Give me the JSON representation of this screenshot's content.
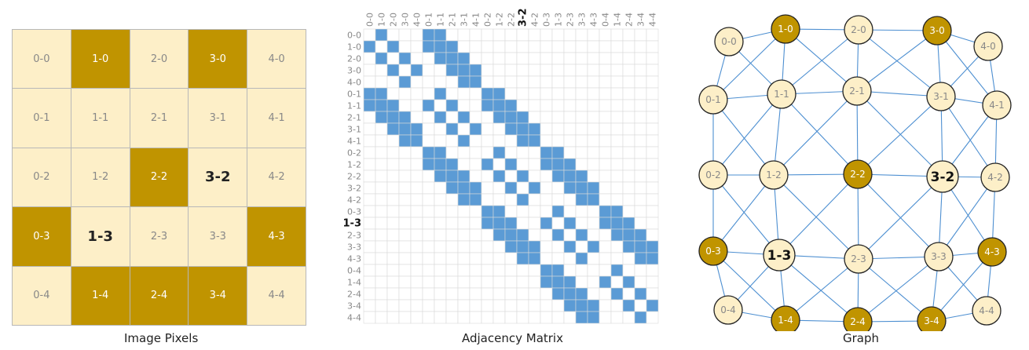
{
  "colors": {
    "light": "#fdefc8",
    "dark": "#c09400",
    "edge": "#4d8fd1",
    "matrix_fill": "#5b9bd5",
    "grid_line": "#d9d9d9",
    "border": "#b8b8b8"
  },
  "pixels": {
    "caption": "Image Pixels",
    "cols": 5,
    "rows": 5,
    "cells": [
      {
        "label": "0-0",
        "dark": false
      },
      {
        "label": "1-0",
        "dark": true
      },
      {
        "label": "2-0",
        "dark": false
      },
      {
        "label": "3-0",
        "dark": true
      },
      {
        "label": "4-0",
        "dark": false
      },
      {
        "label": "0-1",
        "dark": false
      },
      {
        "label": "1-1",
        "dark": false
      },
      {
        "label": "2-1",
        "dark": false
      },
      {
        "label": "3-1",
        "dark": false
      },
      {
        "label": "4-1",
        "dark": false
      },
      {
        "label": "0-2",
        "dark": false
      },
      {
        "label": "1-2",
        "dark": false
      },
      {
        "label": "2-2",
        "dark": true
      },
      {
        "label": "3-2",
        "dark": false
      },
      {
        "label": "4-2",
        "dark": false
      },
      {
        "label": "0-3",
        "dark": true
      },
      {
        "label": "1-3",
        "dark": false
      },
      {
        "label": "2-3",
        "dark": false
      },
      {
        "label": "3-3",
        "dark": false
      },
      {
        "label": "4-3",
        "dark": true
      },
      {
        "label": "0-4",
        "dark": false
      },
      {
        "label": "1-4",
        "dark": true
      },
      {
        "label": "2-4",
        "dark": true
      },
      {
        "label": "3-4",
        "dark": true
      },
      {
        "label": "4-4",
        "dark": false
      }
    ],
    "highlighted": [
      "3-2",
      "1-3"
    ]
  },
  "matrix": {
    "caption": "Adjacency Matrix",
    "labels": [
      "0-0",
      "1-0",
      "2-0",
      "3-0",
      "4-0",
      "0-1",
      "1-1",
      "2-1",
      "3-1",
      "4-1",
      "0-2",
      "1-2",
      "2-2",
      "3-2",
      "4-2",
      "0-3",
      "1-3",
      "2-3",
      "3-3",
      "4-3",
      "0-4",
      "1-4",
      "2-4",
      "3-4",
      "4-4"
    ],
    "row_highlight": "1-3",
    "col_highlight": "3-2",
    "adjacency": "8-neighborhood"
  },
  "graph": {
    "caption": "Graph",
    "nodes": [
      {
        "label": "0-0",
        "dark": false
      },
      {
        "label": "1-0",
        "dark": true
      },
      {
        "label": "2-0",
        "dark": false
      },
      {
        "label": "3-0",
        "dark": true
      },
      {
        "label": "4-0",
        "dark": false
      },
      {
        "label": "0-1",
        "dark": false
      },
      {
        "label": "1-1",
        "dark": false
      },
      {
        "label": "2-1",
        "dark": false
      },
      {
        "label": "3-1",
        "dark": false
      },
      {
        "label": "4-1",
        "dark": false
      },
      {
        "label": "0-2",
        "dark": false
      },
      {
        "label": "1-2",
        "dark": false
      },
      {
        "label": "2-2",
        "dark": true
      },
      {
        "label": "3-2",
        "dark": false
      },
      {
        "label": "4-2",
        "dark": false
      },
      {
        "label": "0-3",
        "dark": true
      },
      {
        "label": "1-3",
        "dark": false
      },
      {
        "label": "2-3",
        "dark": false
      },
      {
        "label": "3-3",
        "dark": false
      },
      {
        "label": "4-3",
        "dark": true
      },
      {
        "label": "0-4",
        "dark": false
      },
      {
        "label": "1-4",
        "dark": true
      },
      {
        "label": "2-4",
        "dark": true
      },
      {
        "label": "3-4",
        "dark": true
      },
      {
        "label": "4-4",
        "dark": false
      }
    ],
    "highlighted": [
      "3-2",
      "1-3"
    ]
  }
}
